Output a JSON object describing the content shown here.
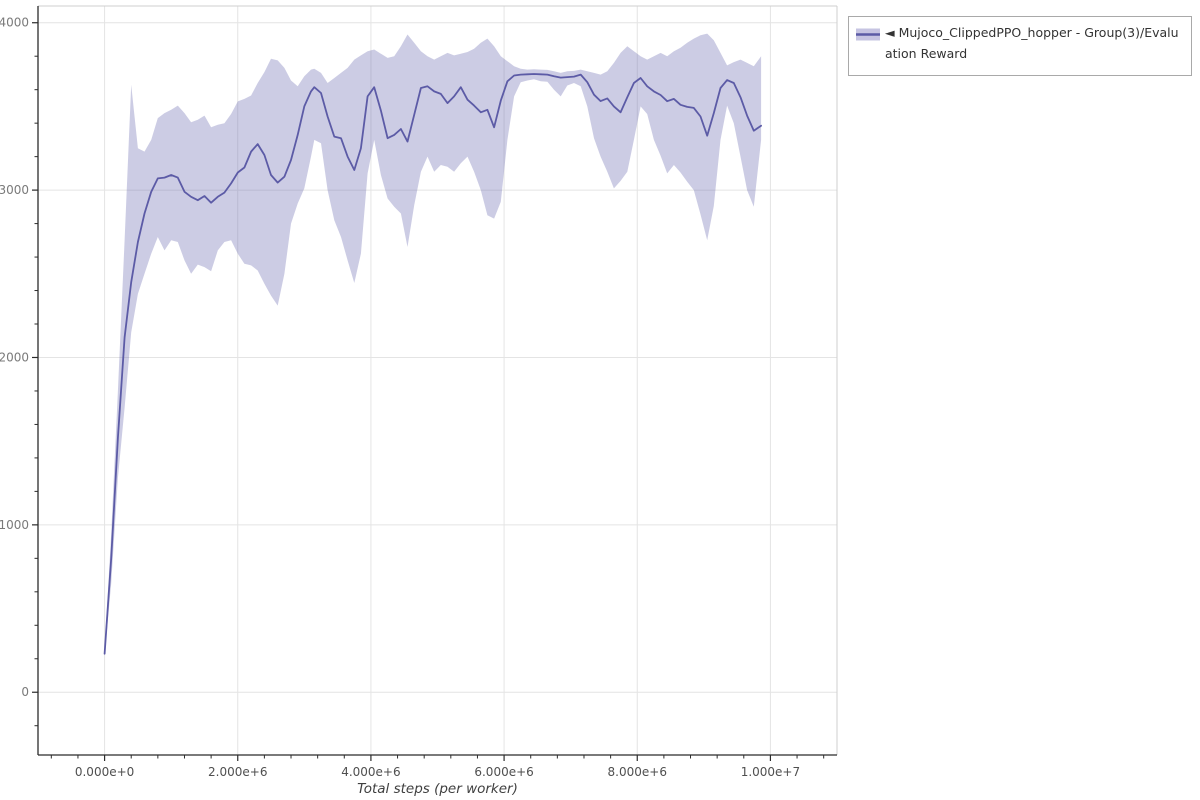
{
  "legend": {
    "label": "◄ Mujoco_ClippedPPO_hopper - Group(3)/Evaluation Reward"
  },
  "colors": {
    "line": "#5c5ba6",
    "band": "rgba(110,108,178,0.35)",
    "band_solid": "#c6c4e2",
    "axis": "#2b2b2b",
    "grid": "#e4e4e4",
    "plot_border": "#cfcfcf",
    "x_tick_label": "#4f4f4f",
    "y_tick_label": "#7a7a7a",
    "axis_title": "#3f3f3f",
    "legend_border": "#a9a9a9",
    "legend_text": "#333333"
  },
  "chart_data": {
    "type": "line",
    "title": "",
    "xlabel": "Total steps (per worker)",
    "ylabel": "",
    "grid": true,
    "legend_position": "top-right",
    "x_unit": 1000000,
    "x_domain": [
      -1,
      11
    ],
    "y_domain": [
      -375,
      4100
    ],
    "x_minor_step": 0.4,
    "y_minor_step": 200,
    "x_ticks": [
      {
        "value": 0,
        "label": "0.000e+0"
      },
      {
        "value": 2,
        "label": "2.000e+6"
      },
      {
        "value": 4,
        "label": "4.000e+6"
      },
      {
        "value": 6,
        "label": "6.000e+6"
      },
      {
        "value": 8,
        "label": "8.000e+6"
      },
      {
        "value": 10,
        "label": "1.000e+7"
      }
    ],
    "y_ticks": [
      {
        "value": 0,
        "label": "0"
      },
      {
        "value": 1000,
        "label": "1000"
      },
      {
        "value": 2000,
        "label": "2000"
      },
      {
        "value": 3000,
        "label": "3000"
      },
      {
        "value": 4000,
        "label": "4000"
      }
    ],
    "series": [
      {
        "name": "Mujoco_ClippedPPO_hopper - Group(3)/Evaluation Reward",
        "x": [
          0,
          0.1,
          0.2,
          0.3,
          0.4,
          0.5,
          0.6,
          0.7,
          0.8,
          0.9,
          1.0,
          1.1,
          1.2,
          1.3,
          1.4,
          1.5,
          1.6,
          1.7,
          1.8,
          1.9,
          2.0,
          2.1,
          2.2,
          2.3,
          2.4,
          2.5,
          2.6,
          2.7,
          2.8,
          2.9,
          3.0,
          3.1,
          3.15,
          3.25,
          3.35,
          3.45,
          3.55,
          3.65,
          3.75,
          3.85,
          3.95,
          4.05,
          4.15,
          4.25,
          4.35,
          4.45,
          4.55,
          4.65,
          4.75,
          4.85,
          4.95,
          5.05,
          5.15,
          5.25,
          5.35,
          5.45,
          5.55,
          5.65,
          5.75,
          5.85,
          5.95,
          6.05,
          6.15,
          6.25,
          6.35,
          6.45,
          6.55,
          6.65,
          6.75,
          6.85,
          6.95,
          7.05,
          7.15,
          7.25,
          7.35,
          7.45,
          7.55,
          7.65,
          7.75,
          7.85,
          7.95,
          8.05,
          8.15,
          8.25,
          8.35,
          8.45,
          8.55,
          8.65,
          8.75,
          8.85,
          8.95,
          9.05,
          9.15,
          9.25,
          9.35,
          9.45,
          9.55,
          9.65,
          9.75,
          9.86
        ],
        "mean": [
          230,
          800,
          1520,
          2120,
          2450,
          2690,
          2860,
          2990,
          3070,
          3075,
          3090,
          3075,
          2990,
          2960,
          2940,
          2965,
          2925,
          2960,
          2985,
          3040,
          3105,
          3135,
          3230,
          3275,
          3210,
          3090,
          3045,
          3080,
          3180,
          3330,
          3500,
          3590,
          3615,
          3580,
          3440,
          3320,
          3310,
          3200,
          3120,
          3250,
          3560,
          3615,
          3475,
          3310,
          3330,
          3365,
          3290,
          3450,
          3610,
          3620,
          3590,
          3575,
          3520,
          3560,
          3615,
          3540,
          3505,
          3465,
          3480,
          3375,
          3535,
          3650,
          3685,
          3690,
          3692,
          3694,
          3692,
          3690,
          3680,
          3672,
          3675,
          3678,
          3690,
          3645,
          3570,
          3532,
          3548,
          3500,
          3465,
          3555,
          3640,
          3670,
          3620,
          3590,
          3568,
          3531,
          3545,
          3510,
          3497,
          3491,
          3440,
          3325,
          3460,
          3610,
          3657,
          3640,
          3555,
          3445,
          3355,
          3385
        ],
        "upper": [
          245,
          950,
          1800,
          2700,
          3630,
          3250,
          3230,
          3300,
          3430,
          3460,
          3480,
          3505,
          3460,
          3405,
          3420,
          3445,
          3375,
          3390,
          3400,
          3455,
          3530,
          3545,
          3565,
          3640,
          3705,
          3785,
          3775,
          3730,
          3655,
          3620,
          3680,
          3720,
          3725,
          3700,
          3640,
          3670,
          3700,
          3730,
          3780,
          3805,
          3830,
          3840,
          3815,
          3790,
          3800,
          3860,
          3930,
          3880,
          3830,
          3800,
          3780,
          3800,
          3820,
          3805,
          3815,
          3825,
          3845,
          3880,
          3905,
          3860,
          3800,
          3770,
          3740,
          3725,
          3720,
          3722,
          3720,
          3718,
          3710,
          3700,
          3710,
          3712,
          3720,
          3710,
          3700,
          3690,
          3710,
          3760,
          3820,
          3860,
          3830,
          3800,
          3780,
          3800,
          3820,
          3800,
          3830,
          3850,
          3880,
          3905,
          3925,
          3935,
          3895,
          3820,
          3745,
          3765,
          3780,
          3760,
          3740,
          3800
        ],
        "lower": [
          215,
          650,
          1280,
          1700,
          2150,
          2380,
          2500,
          2620,
          2720,
          2640,
          2700,
          2690,
          2580,
          2500,
          2555,
          2540,
          2515,
          2640,
          2690,
          2700,
          2620,
          2560,
          2550,
          2520,
          2440,
          2370,
          2310,
          2500,
          2800,
          2920,
          3010,
          3200,
          3300,
          3280,
          3000,
          2820,
          2720,
          2580,
          2445,
          2620,
          3100,
          3300,
          3090,
          2950,
          2900,
          2860,
          2660,
          2910,
          3110,
          3200,
          3110,
          3150,
          3140,
          3110,
          3160,
          3200,
          3110,
          3000,
          2850,
          2830,
          2930,
          3300,
          3560,
          3645,
          3655,
          3662,
          3650,
          3648,
          3600,
          3560,
          3625,
          3640,
          3620,
          3500,
          3310,
          3200,
          3110,
          3010,
          3055,
          3110,
          3300,
          3500,
          3455,
          3300,
          3205,
          3100,
          3150,
          3105,
          3050,
          3000,
          2855,
          2700,
          2905,
          3300,
          3505,
          3400,
          3200,
          3000,
          2900,
          3300
        ]
      }
    ]
  }
}
